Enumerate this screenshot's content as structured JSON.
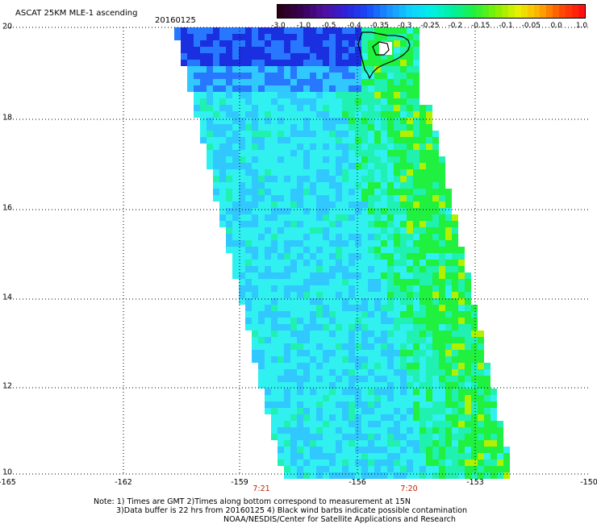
{
  "header": {
    "title": "ASCAT 25KM MLE-1 ascending",
    "date": "20160125"
  },
  "colorbar": {
    "labels": [
      "-3.0",
      "-1.0",
      "-0.5",
      "-0.4",
      "-0.35",
      "-0.3",
      "-0.25",
      "-0.2",
      "-0.15",
      "-0.1",
      "-0.05",
      "0.0",
      "1.0"
    ],
    "colors": [
      "#1a0010",
      "#3a0060",
      "#4a10b0",
      "#1a20e0",
      "#1a60ff",
      "#10b0ff",
      "#00f0f0",
      "#00f0a0",
      "#10f020",
      "#a0f000",
      "#f0f000",
      "#ff9000",
      "#ff2000"
    ]
  },
  "axes": {
    "x_ticks": [
      "-165",
      "-162",
      "-159",
      "-156",
      "-153",
      "-150"
    ],
    "y_ticks": [
      "20",
      "18",
      "16",
      "14",
      "12",
      "10"
    ],
    "grid": "dotted"
  },
  "pass_times": [
    "7:21",
    "7:20"
  ],
  "notes": {
    "line1": "Note: 1) Times are GMT 2)Times along bottom correspond to measurement at 15N",
    "line2": "3)Data buffer is 22 hrs from 20160125 4) Black wind barbs indicate possible contamination",
    "line3": "NOAA/NESDIS/Center for Satellite Applications and Research"
  },
  "map": {
    "lon_range": [
      -165,
      -150
    ],
    "lat_range": [
      10,
      20
    ],
    "land_outline": "Hawaii (Big Island, northern tip)",
    "swath_colors": {
      "deep": "#1a30e0",
      "mid_blue": "#2878ff",
      "light_blue": "#30c8ff",
      "cyan": "#30f0f0",
      "aqua": "#20f0b0",
      "green": "#20f040",
      "yellow_green": "#b0f000"
    }
  }
}
